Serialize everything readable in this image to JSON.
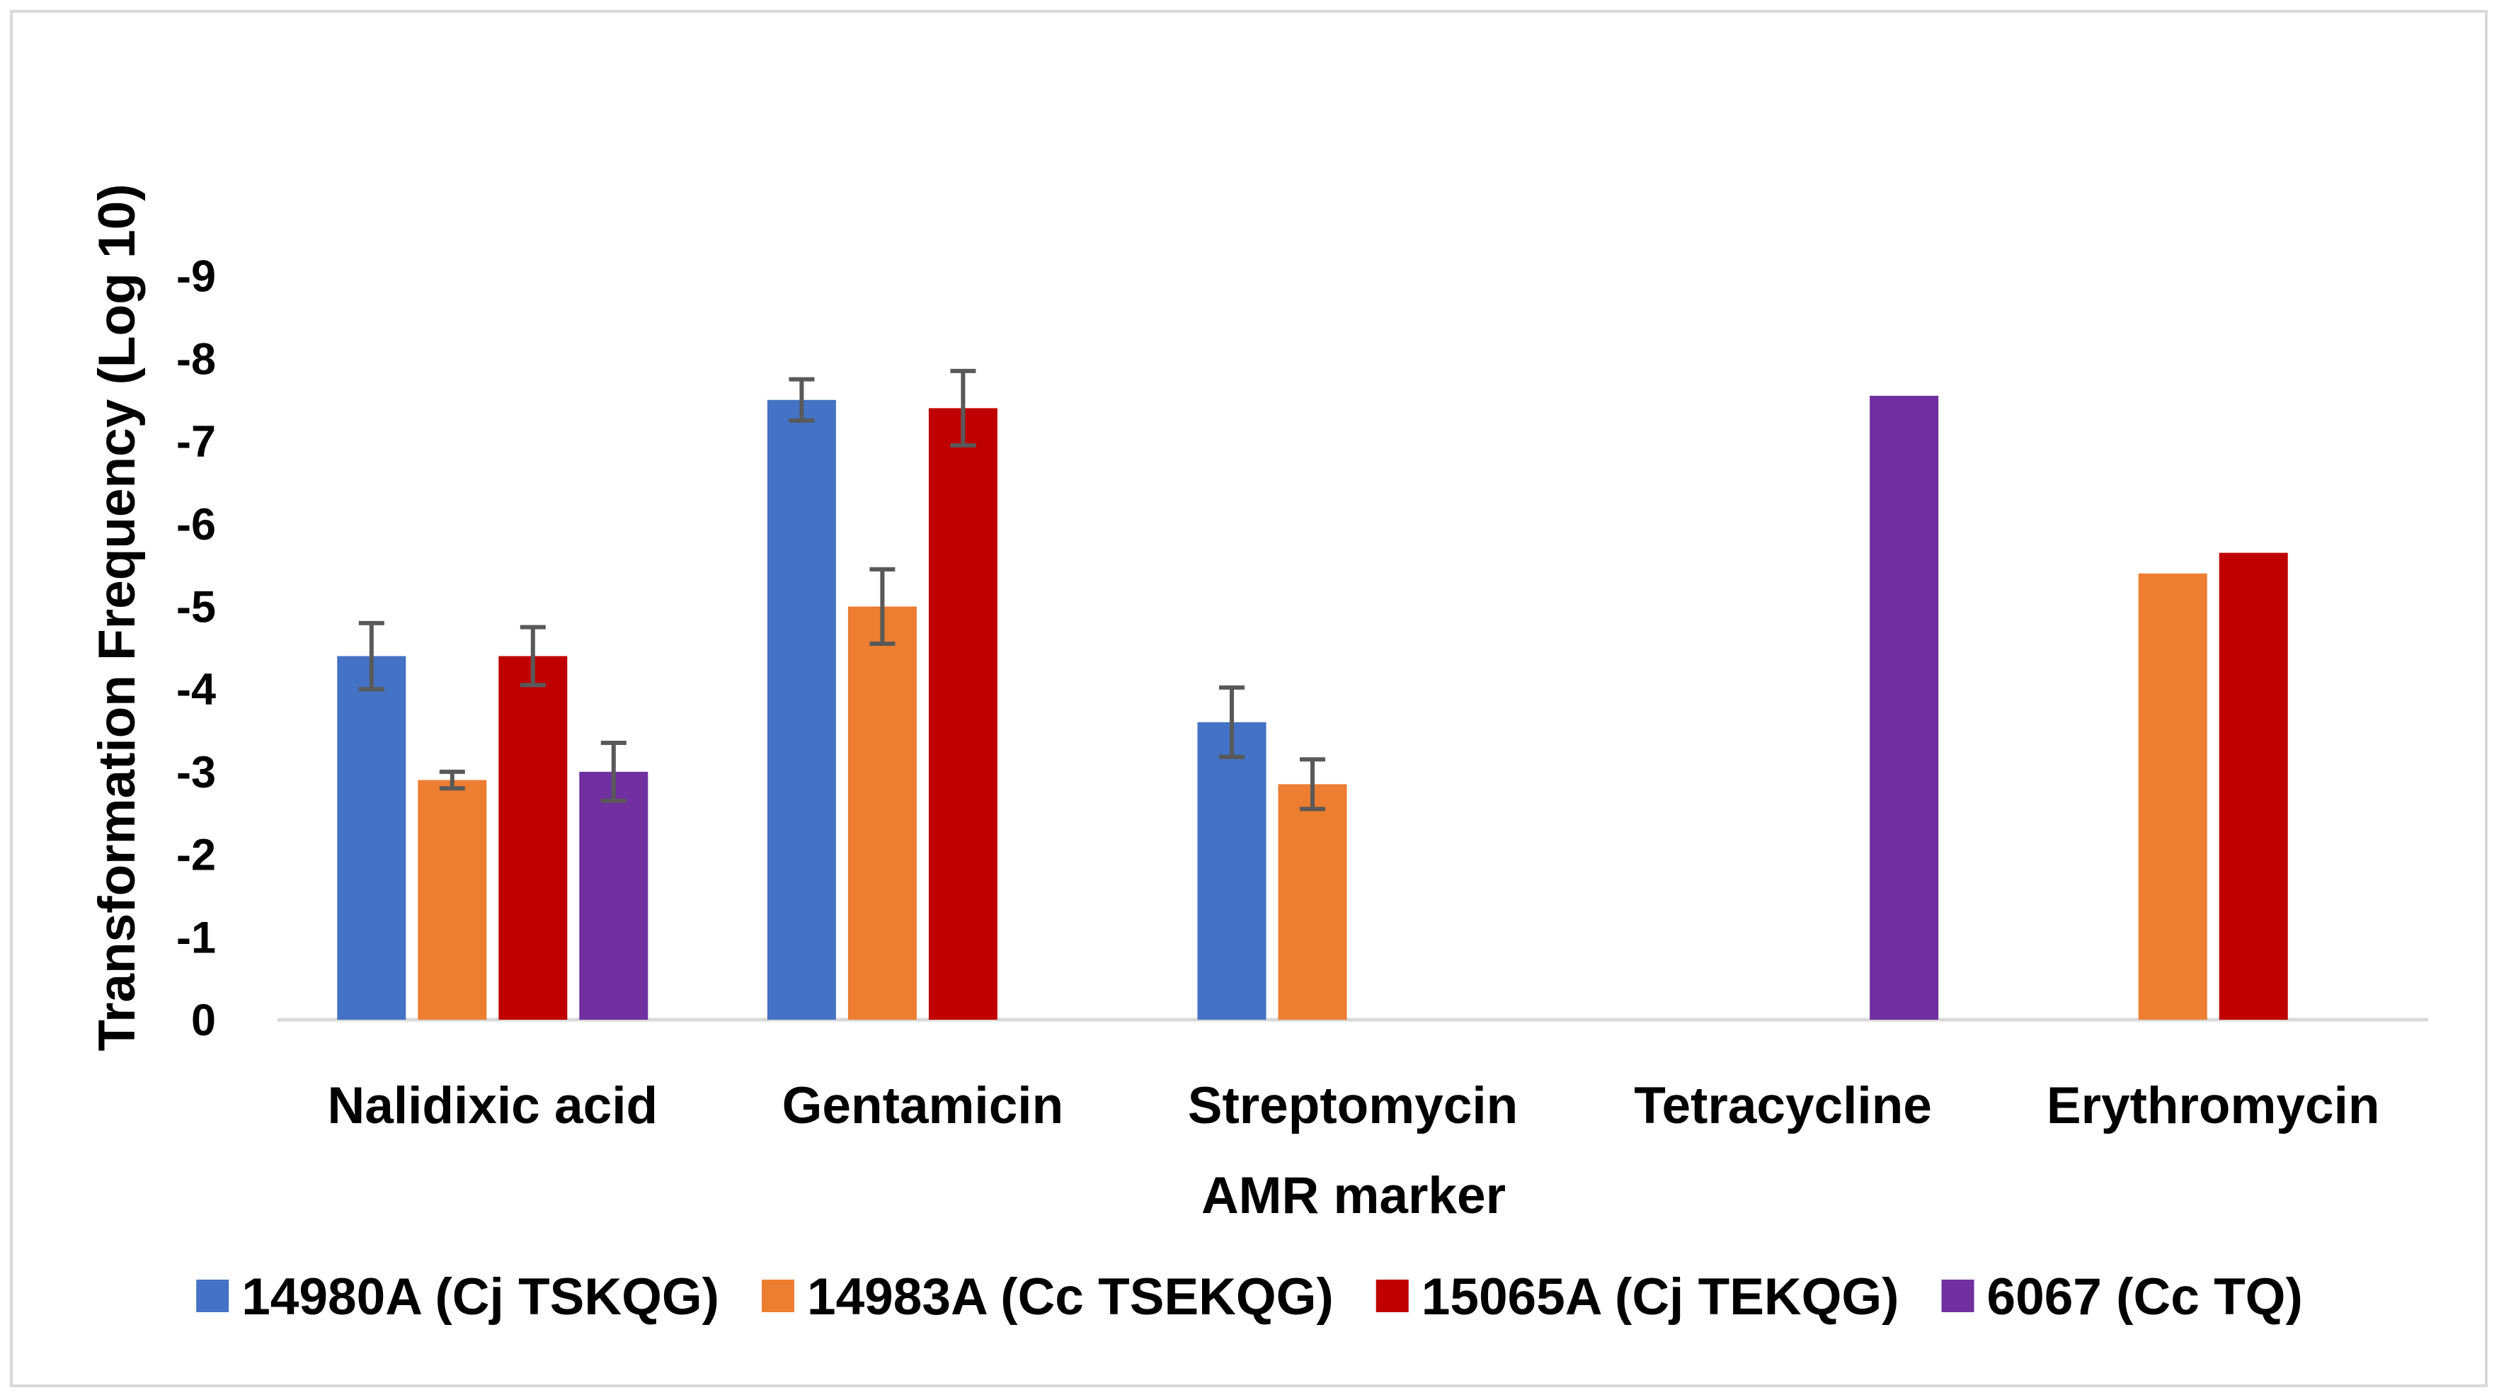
{
  "chart_data": {
    "type": "bar",
    "title": "",
    "xlabel": "AMR marker",
    "ylabel": "Transformation Frequency (Log 10)",
    "ylim": [
      0,
      -9
    ],
    "yticks": [
      "0",
      "-1",
      "-2",
      "-3",
      "-4",
      "-5",
      "-6",
      "-7",
      "-8",
      "-9"
    ],
    "categories": [
      "Nalidixic acid",
      "Gentamicin",
      "Streptomycin",
      "Tetracycline",
      "Erythromycin"
    ],
    "legend_position": "bottom",
    "series": [
      {
        "name": "14980A (Cj TSKQG)",
        "color": "#4472C4",
        "values": [
          -4.4,
          -7.5,
          -3.6,
          null,
          null
        ],
        "errors": [
          0.4,
          0.25,
          0.42,
          null,
          null
        ]
      },
      {
        "name": "14983A (Cc TSEKQG)",
        "color": "#ED7D31",
        "values": [
          -2.9,
          -5.0,
          -2.85,
          null,
          -5.4
        ],
        "errors": [
          0.1,
          0.45,
          0.3,
          null,
          null
        ]
      },
      {
        "name": "15065A (Cj TEKQG)",
        "color": "#C00000",
        "values": [
          -4.4,
          -7.4,
          null,
          null,
          -5.65
        ],
        "errors": [
          0.35,
          0.45,
          null,
          null,
          null
        ]
      },
      {
        "name": "6067 (Cc TQ)",
        "color": "#7030A0",
        "values": [
          -3.0,
          null,
          null,
          -7.55,
          null
        ],
        "errors": [
          0.35,
          null,
          null,
          null,
          null
        ]
      }
    ]
  }
}
